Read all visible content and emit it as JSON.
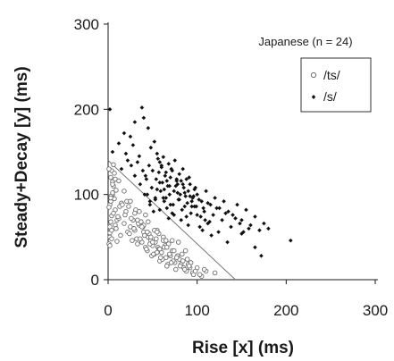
{
  "chart_data": {
    "type": "scatter",
    "xlabel": "Rise [x] (ms)",
    "ylabel": "Steady+Decay [y] (ms)",
    "annotation": "Japanese (n = 24)",
    "xlim": [
      0,
      300
    ],
    "ylim": [
      0,
      300
    ],
    "xticks": [
      "0",
      "100",
      "200",
      "300"
    ],
    "yticks": [
      "0",
      "100",
      "200",
      "300"
    ],
    "grid": false,
    "legend_position": "top-right",
    "boundary_line": {
      "x": [
        0,
        143
      ],
      "y": [
        140,
        0
      ],
      "color": "#777777"
    },
    "series": [
      {
        "name": "/ts/",
        "marker": "open-circle",
        "color": "#6e6e6e",
        "x": [
          1,
          2,
          3,
          4,
          2,
          5,
          6,
          3,
          4,
          7,
          8,
          2,
          1,
          5,
          9,
          3,
          6,
          10,
          2,
          4,
          8,
          12,
          1,
          3,
          5,
          7,
          15,
          2,
          4,
          9,
          11,
          13,
          6,
          18,
          20,
          3,
          8,
          22,
          25,
          5,
          10,
          14,
          28,
          30,
          32,
          35,
          16,
          19,
          24,
          27,
          31,
          34,
          38,
          40,
          42,
          45,
          21,
          26,
          29,
          33,
          37,
          41,
          44,
          48,
          50,
          52,
          55,
          23,
          36,
          39,
          43,
          46,
          49,
          53,
          56,
          58,
          60,
          62,
          65,
          30,
          40,
          47,
          51,
          54,
          57,
          61,
          64,
          67,
          70,
          72,
          75,
          33,
          44,
          50,
          55,
          59,
          63,
          66,
          69,
          73,
          76,
          78,
          80,
          82,
          85,
          38,
          48,
          58,
          68,
          71,
          74,
          77,
          81,
          84,
          88,
          90,
          92,
          95,
          42,
          52,
          62,
          79,
          83,
          86,
          89,
          93,
          96,
          100,
          105,
          110,
          120,
          57,
          66,
          72,
          87,
          91,
          98,
          103,
          108,
          35,
          25,
          18,
          12,
          45,
          55,
          65
        ],
        "y": [
          42,
          55,
          68,
          75,
          88,
          100,
          110,
          120,
          128,
          95,
          82,
          62,
          130,
          115,
          105,
          92,
          78,
          70,
          50,
          58,
          64,
          72,
          85,
          98,
          112,
          125,
          90,
          40,
          48,
          60,
          74,
          86,
          135,
          66,
          80,
          96,
          118,
          56,
          62,
          102,
          45,
          52,
          70,
          58,
          48,
          64,
          88,
          76,
          54,
          46,
          82,
          66,
          44,
          56,
          38,
          50,
          92,
          72,
          60,
          42,
          68,
          52,
          34,
          46,
          40,
          30,
          58,
          86,
          48,
          62,
          36,
          54,
          28,
          44,
          38,
          22,
          32,
          50,
          26,
          78,
          64,
          42,
          30,
          48,
          36,
          24,
          40,
          18,
          28,
          34,
          20,
          70,
          56,
          44,
          32,
          26,
          38,
          16,
          30,
          22,
          12,
          28,
          24,
          18,
          14,
          62,
          50,
          36,
          42,
          20,
          34,
          26,
          16,
          22,
          10,
          18,
          14,
          8,
          76,
          58,
          46,
          44,
          30,
          12,
          24,
          20,
          6,
          14,
          4,
          10,
          8,
          54,
          38,
          46,
          34,
          16,
          10,
          6,
          12,
          80,
          92,
          104,
          116,
          68,
          56,
          46
        ]
      },
      {
        "name": "/s/",
        "marker": "filled-diamond",
        "color": "#111111",
        "x": [
          2,
          5,
          12,
          18,
          25,
          30,
          38,
          45,
          40,
          35,
          28,
          22,
          15,
          48,
          52,
          55,
          58,
          60,
          62,
          65,
          68,
          70,
          72,
          75,
          78,
          80,
          82,
          85,
          88,
          90,
          92,
          95,
          98,
          100,
          105,
          110,
          115,
          120,
          125,
          130,
          135,
          140,
          145,
          150,
          155,
          160,
          165,
          170,
          175,
          180,
          205,
          42,
          46,
          50,
          54,
          57,
          61,
          64,
          67,
          71,
          74,
          77,
          81,
          84,
          87,
          91,
          94,
          97,
          102,
          108,
          112,
          118,
          122,
          128,
          132,
          138,
          143,
          148,
          152,
          158,
          36,
          44,
          49,
          53,
          56,
          59,
          63,
          66,
          69,
          73,
          76,
          79,
          83,
          86,
          89,
          93,
          96,
          99,
          104,
          107,
          114,
          33,
          47,
          51,
          58,
          62,
          66,
          70,
          74,
          78,
          82,
          86,
          90,
          94,
          100,
          106,
          112,
          39,
          43,
          55,
          60,
          65,
          69,
          72,
          77,
          80,
          84,
          88,
          92,
          97,
          103,
          109,
          116,
          124,
          134,
          150,
          165,
          172,
          30,
          26,
          20,
          41,
          47,
          53,
          58,
          63,
          68
        ],
        "y": [
          200,
          150,
          160,
          172,
          168,
          185,
          202,
          178,
          190,
          145,
          158,
          140,
          130,
          155,
          162,
          148,
          138,
          132,
          144,
          126,
          136,
          120,
          128,
          140,
          112,
          124,
          116,
          108,
          118,
          104,
          112,
          96,
          108,
          100,
          92,
          104,
          88,
          96,
          84,
          92,
          80,
          76,
          88,
          70,
          82,
          64,
          74,
          58,
          66,
          60,
          46,
          122,
          134,
          128,
          118,
          126,
          114,
          122,
          110,
          130,
          104,
          116,
          100,
          112,
          98,
          120,
          86,
          106,
          94,
          80,
          90,
          76,
          84,
          70,
          78,
          62,
          72,
          66,
          56,
          60,
          112,
          100,
          108,
          96,
          142,
          104,
          92,
          116,
          100,
          88,
          110,
          94,
          82,
          102,
          90,
          78,
          98,
          86,
          74,
          84,
          68,
          138,
          92,
          80,
          114,
          96,
          84,
          88,
          76,
          102,
          70,
          86,
          64,
          92,
          76,
          58,
          66,
          128,
          118,
          106,
          134,
          96,
          110,
          78,
          118,
          94,
          130,
          74,
          98,
          86,
          62,
          70,
          52,
          56,
          44,
          54,
          38,
          28,
          122,
          134,
          148,
          100,
          88,
          94,
          82,
          106,
          72
        ]
      }
    ]
  }
}
